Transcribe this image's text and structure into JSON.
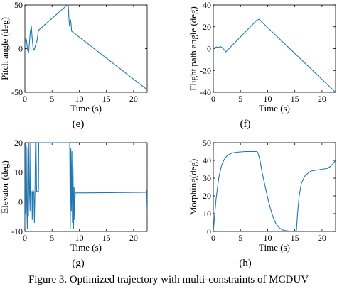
{
  "figure_caption": "Figure 3.   Optimized trajectory with multi-constraints of MCDUV",
  "line_color": "#1f77b4",
  "chart_data": [
    {
      "id": "e",
      "panel_label": "(e)",
      "type": "line",
      "xlabel": "Time (s)",
      "ylabel": "Pitch angle (deg)",
      "xlim": [
        0,
        22.5
      ],
      "ylim": [
        -50,
        50
      ],
      "xticks": [
        0,
        5,
        10,
        15,
        20
      ],
      "yticks": [
        -50,
        0,
        50
      ],
      "grid": false,
      "series": [
        {
          "x": [
            0,
            0.1,
            0.3,
            0.5,
            0.7,
            1.0,
            1.2,
            1.3,
            1.5,
            1.7,
            2.0,
            2.2,
            2.5,
            7.8,
            8.0,
            8.1,
            8.2,
            8.3,
            8.4,
            8.5,
            8.6,
            22.5
          ],
          "y": [
            5,
            12,
            10,
            -2,
            -4,
            20,
            25,
            15,
            1,
            -2,
            5,
            8,
            21,
            50,
            48,
            35,
            26,
            30,
            33,
            28,
            20,
            -47
          ]
        }
      ]
    },
    {
      "id": "f",
      "panel_label": "(f)",
      "type": "line",
      "xlabel": "Time (s)",
      "ylabel": "Flight path angle (deg)",
      "xlim": [
        0,
        22.5
      ],
      "ylim": [
        -40,
        40
      ],
      "xticks": [
        0,
        5,
        10,
        15,
        20
      ],
      "yticks": [
        -40,
        -20,
        0,
        20,
        40
      ],
      "grid": false,
      "series": [
        {
          "x": [
            0,
            0.3,
            0.6,
            1.0,
            1.3,
            1.6,
            2.0,
            2.3,
            8.0,
            8.5,
            8.8,
            22.5
          ],
          "y": [
            0,
            1,
            1.5,
            1,
            2,
            1,
            -1,
            -3,
            26,
            27,
            25,
            -40
          ]
        }
      ]
    },
    {
      "id": "g",
      "panel_label": "(g)",
      "type": "line",
      "xlabel": "Time (s)",
      "ylabel": "Elevator (deg)",
      "xlim": [
        0,
        22.5
      ],
      "ylim": [
        -10,
        20
      ],
      "xticks": [
        0,
        5,
        10,
        15,
        20
      ],
      "yticks": [
        -10,
        0,
        10,
        20
      ],
      "grid": false,
      "series": [
        {
          "x": [
            0,
            0.05,
            0.15,
            0.25,
            0.35,
            0.45,
            0.55,
            0.65,
            0.75,
            0.85,
            0.95,
            1.05,
            1.1,
            1.2,
            1.3,
            1.35,
            1.45,
            1.55,
            1.65,
            1.75,
            1.85,
            1.95,
            2.05,
            2.15,
            2.3,
            2.5,
            2.55,
            8.25,
            8.35,
            8.45,
            8.55,
            8.65,
            8.75,
            8.85,
            8.95,
            9.05,
            9.15,
            9.25,
            22.3,
            22.4,
            22.5
          ],
          "y": [
            -8,
            20,
            -4,
            19,
            -2,
            -9,
            18,
            -5,
            20,
            3,
            -3,
            20,
            3.5,
            3.5,
            3.2,
            -6,
            4,
            3,
            3.5,
            -7,
            3,
            20,
            20,
            3.5,
            3.5,
            3.5,
            20,
            20,
            -9,
            18,
            -3,
            17,
            -7,
            12,
            -9,
            5,
            -6,
            3,
            3.2,
            4,
            -3
          ]
        }
      ]
    },
    {
      "id": "h",
      "panel_label": "(h)",
      "type": "line",
      "xlabel": "Time (s)",
      "ylabel": "Morphing(deg)",
      "xlim": [
        0,
        22.5
      ],
      "ylim": [
        0,
        50
      ],
      "xticks": [
        0,
        5,
        10,
        15,
        20
      ],
      "yticks": [
        0,
        10,
        20,
        30,
        40,
        50
      ],
      "grid": false,
      "series": [
        {
          "x": [
            0,
            0.5,
            1,
            1.5,
            2,
            2.5,
            3,
            3.5,
            4,
            5,
            6,
            7,
            8,
            8.2,
            8.6,
            9,
            9.5,
            10,
            10.5,
            11,
            11.5,
            12,
            12.5,
            13,
            14,
            15,
            15.3,
            15.5,
            15.8,
            16.2,
            16.8,
            17.5,
            18,
            19,
            20,
            21,
            21.5,
            22,
            22.5
          ],
          "y": [
            0,
            18,
            30,
            37,
            40.5,
            42.5,
            43.5,
            44.2,
            44.5,
            44.8,
            45,
            45,
            45,
            44.5,
            40,
            33,
            26,
            19,
            13,
            8,
            4.5,
            2.5,
            1.2,
            0.6,
            0.2,
            0.2,
            0.5,
            10,
            20,
            27,
            31,
            33,
            34,
            34.5,
            35,
            35.5,
            36.5,
            38,
            40
          ]
        }
      ]
    }
  ]
}
